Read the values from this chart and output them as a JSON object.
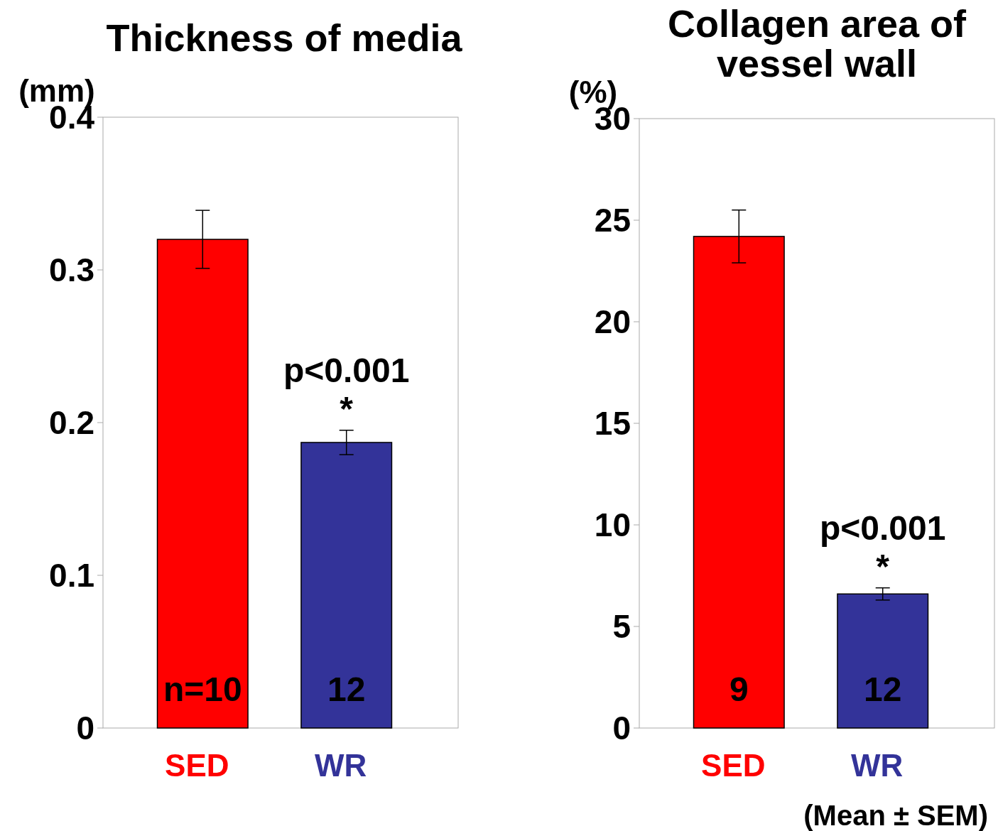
{
  "chart_data": [
    {
      "type": "bar",
      "title": "Thickness of media",
      "ylabel": "(mm)",
      "categories": [
        "SED",
        "WR"
      ],
      "values": [
        0.32,
        0.187
      ],
      "colors": [
        "#ff0000",
        "#333399"
      ],
      "errors": [
        0.019,
        0.008
      ],
      "ylim": [
        0,
        0.4
      ],
      "yticks": [
        0,
        0.1,
        0.2,
        0.3,
        0.4
      ],
      "grid": false,
      "annotations": [
        "n=10",
        "12",
        "p<0.001",
        "*"
      ]
    },
    {
      "type": "bar",
      "title": "Collagen area of vessel wall",
      "ylabel": "(%)",
      "categories": [
        "SED",
        "WR"
      ],
      "values": [
        24.2,
        6.6
      ],
      "colors": [
        "#ff0000",
        "#333399"
      ],
      "errors": [
        1.3,
        0.3
      ],
      "ylim": [
        0,
        30
      ],
      "yticks": [
        0,
        5,
        10,
        15,
        20,
        25,
        30
      ],
      "grid": false,
      "annotations": [
        "9",
        "12",
        "p<0.001",
        "*",
        "(Mean ± SEM)"
      ]
    }
  ]
}
